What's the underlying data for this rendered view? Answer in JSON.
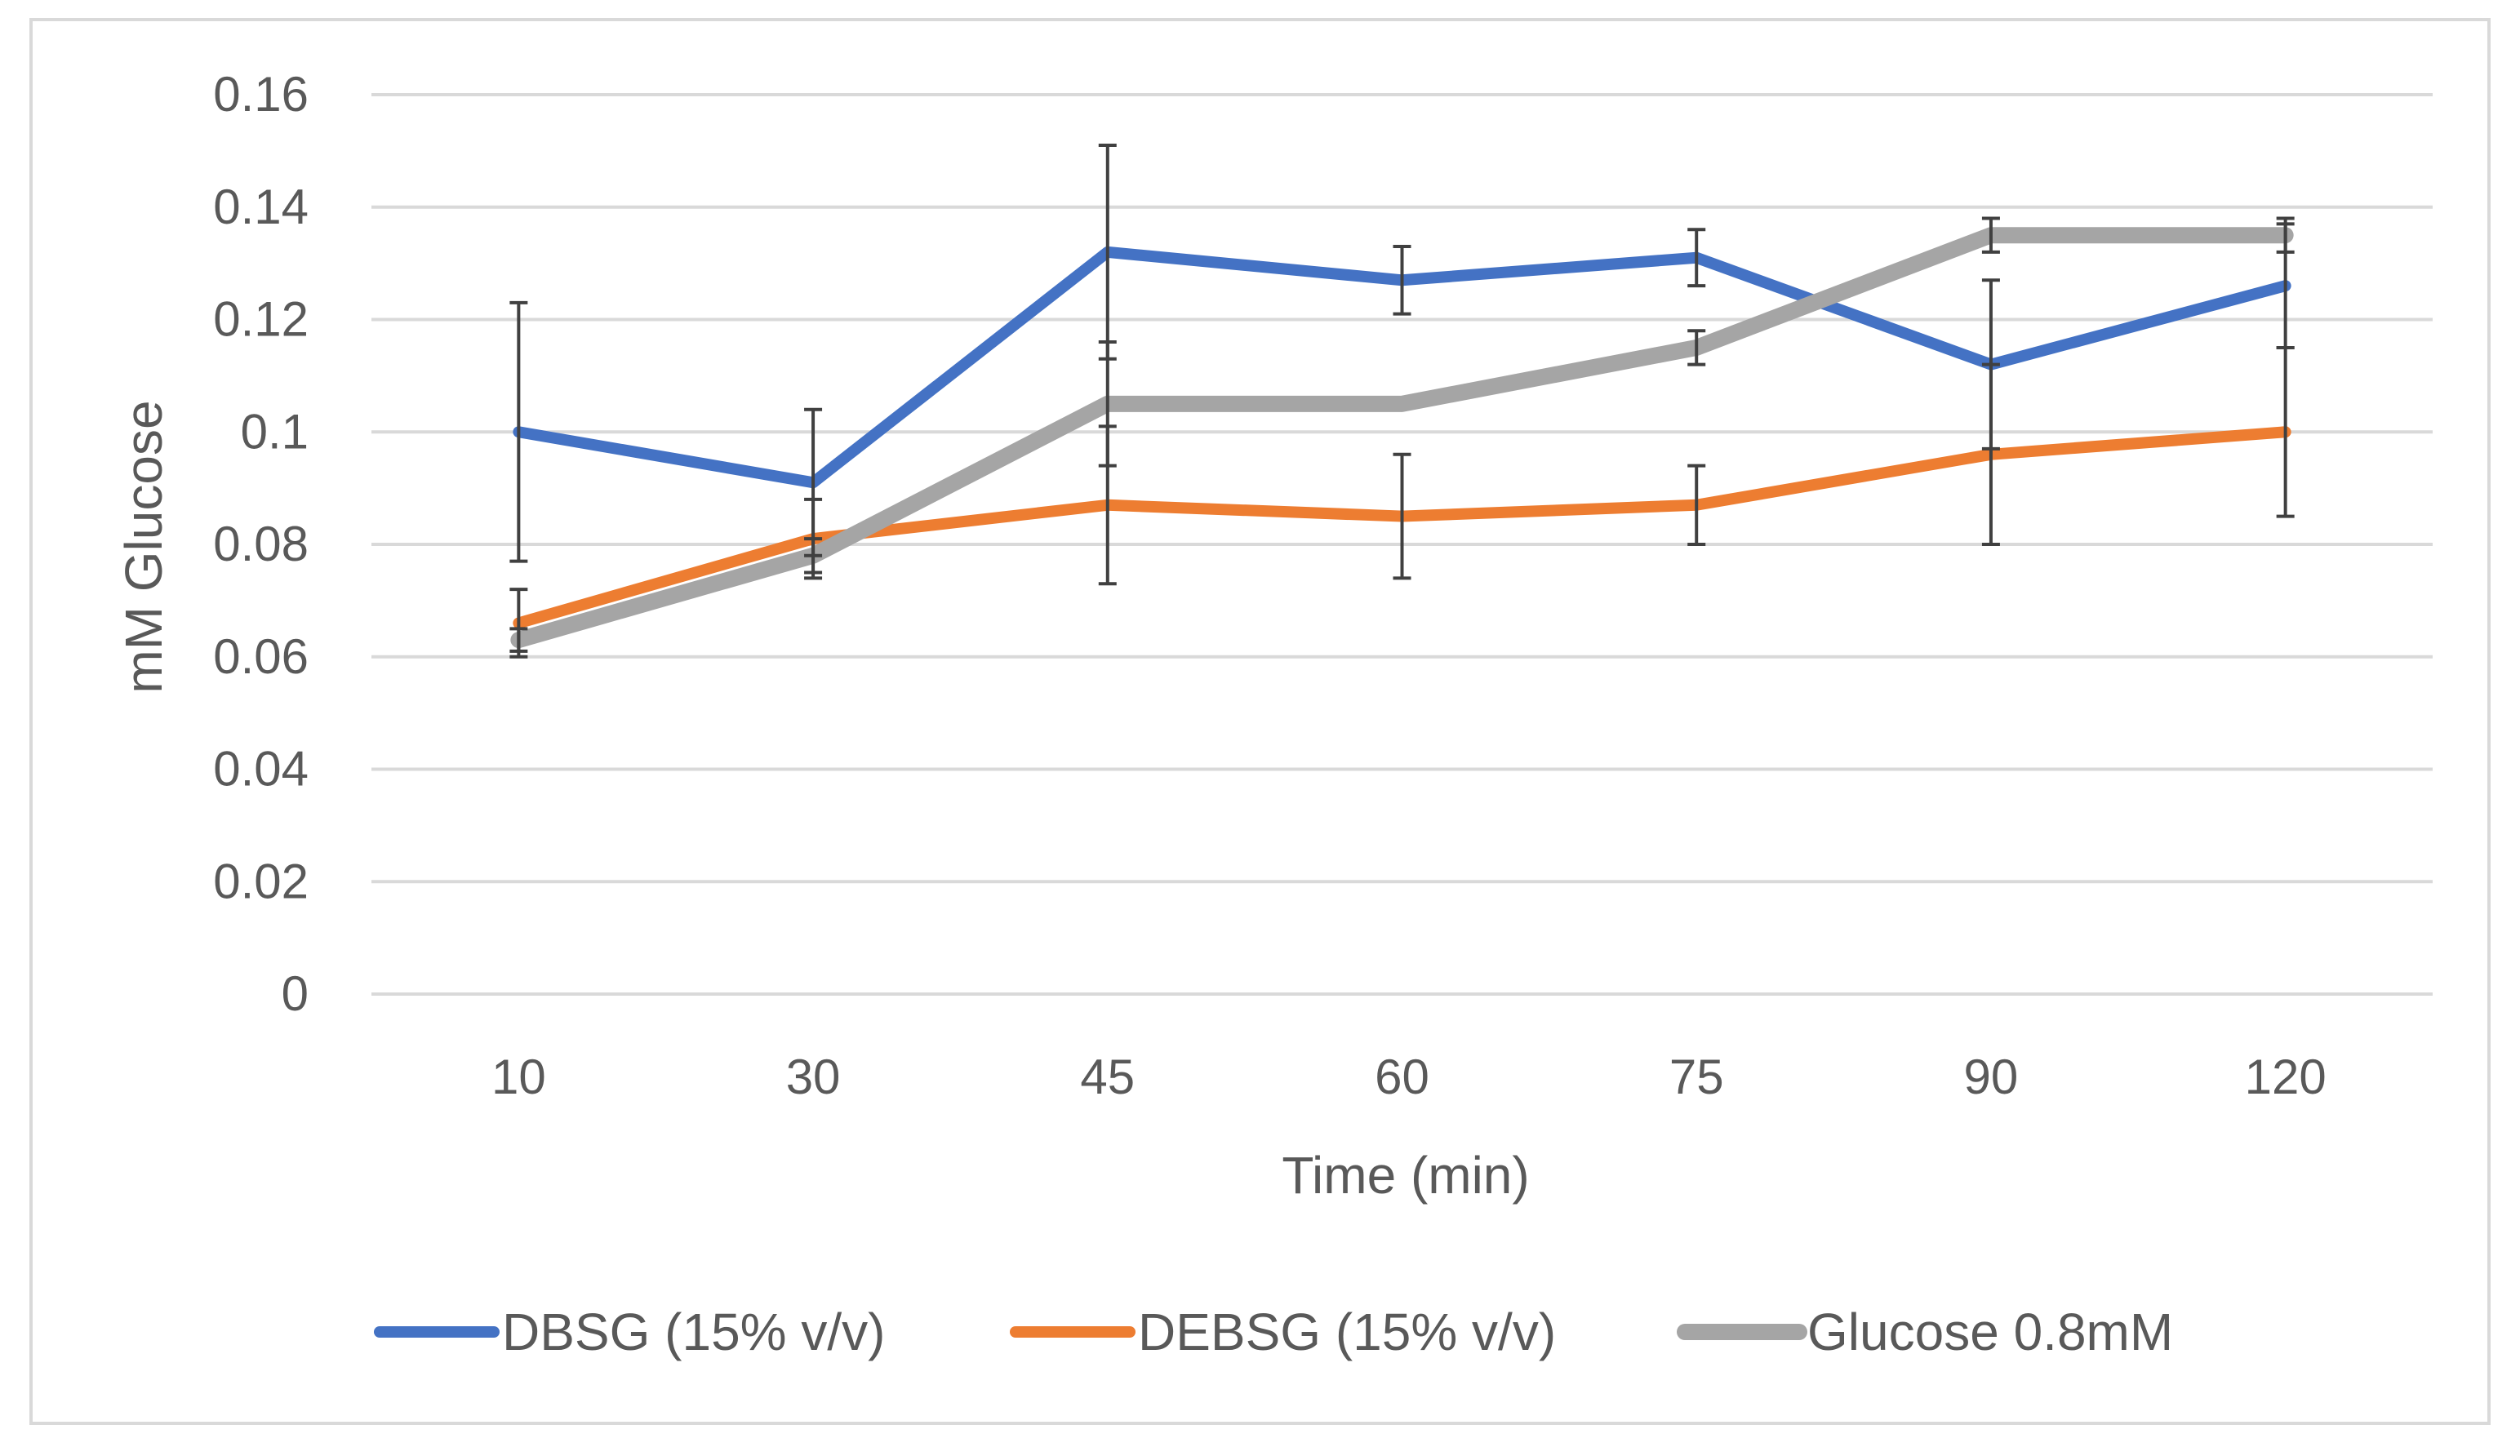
{
  "chart_data": {
    "type": "line",
    "title": "",
    "xlabel": "Time (min)",
    "ylabel": "mM Glucose",
    "categories": [
      "10",
      "30",
      "45",
      "60",
      "75",
      "90",
      "120"
    ],
    "ylim": [
      0,
      0.16
    ],
    "yticks": [
      0,
      0.02,
      0.04,
      0.06,
      0.08,
      0.1,
      0.12,
      0.14,
      0.16
    ],
    "ytick_labels": [
      "0",
      "0.02",
      "0.04",
      "0.06",
      "0.08",
      "0.1",
      "0.12",
      "0.14",
      "0.16"
    ],
    "grid": true,
    "legend_position": "bottom",
    "series": [
      {
        "name": "DBSG (15% v/v)",
        "color": "#4472C4",
        "values": [
          0.1,
          0.091,
          0.132,
          0.127,
          0.131,
          0.112,
          0.126
        ],
        "error": [
          0.023,
          0.013,
          0.019,
          0.006,
          0.005,
          0.015,
          0.011
        ]
      },
      {
        "name": "DEBSG (15% v/v)",
        "color": "#ED7D31",
        "values": [
          0.066,
          0.081,
          0.087,
          0.085,
          0.087,
          0.096,
          0.1
        ],
        "error": [
          0.006,
          0.007,
          0.014,
          0.011,
          0.007,
          0.016,
          0.015
        ]
      },
      {
        "name": "Glucose 0.8mM",
        "color": "#A5A5A5",
        "values": [
          0.063,
          0.078,
          0.105,
          0.105,
          0.115,
          0.135,
          0.135
        ],
        "error": [
          0.002,
          0.003,
          0.011,
          0.0,
          0.003,
          0.003,
          0.003
        ]
      }
    ]
  }
}
